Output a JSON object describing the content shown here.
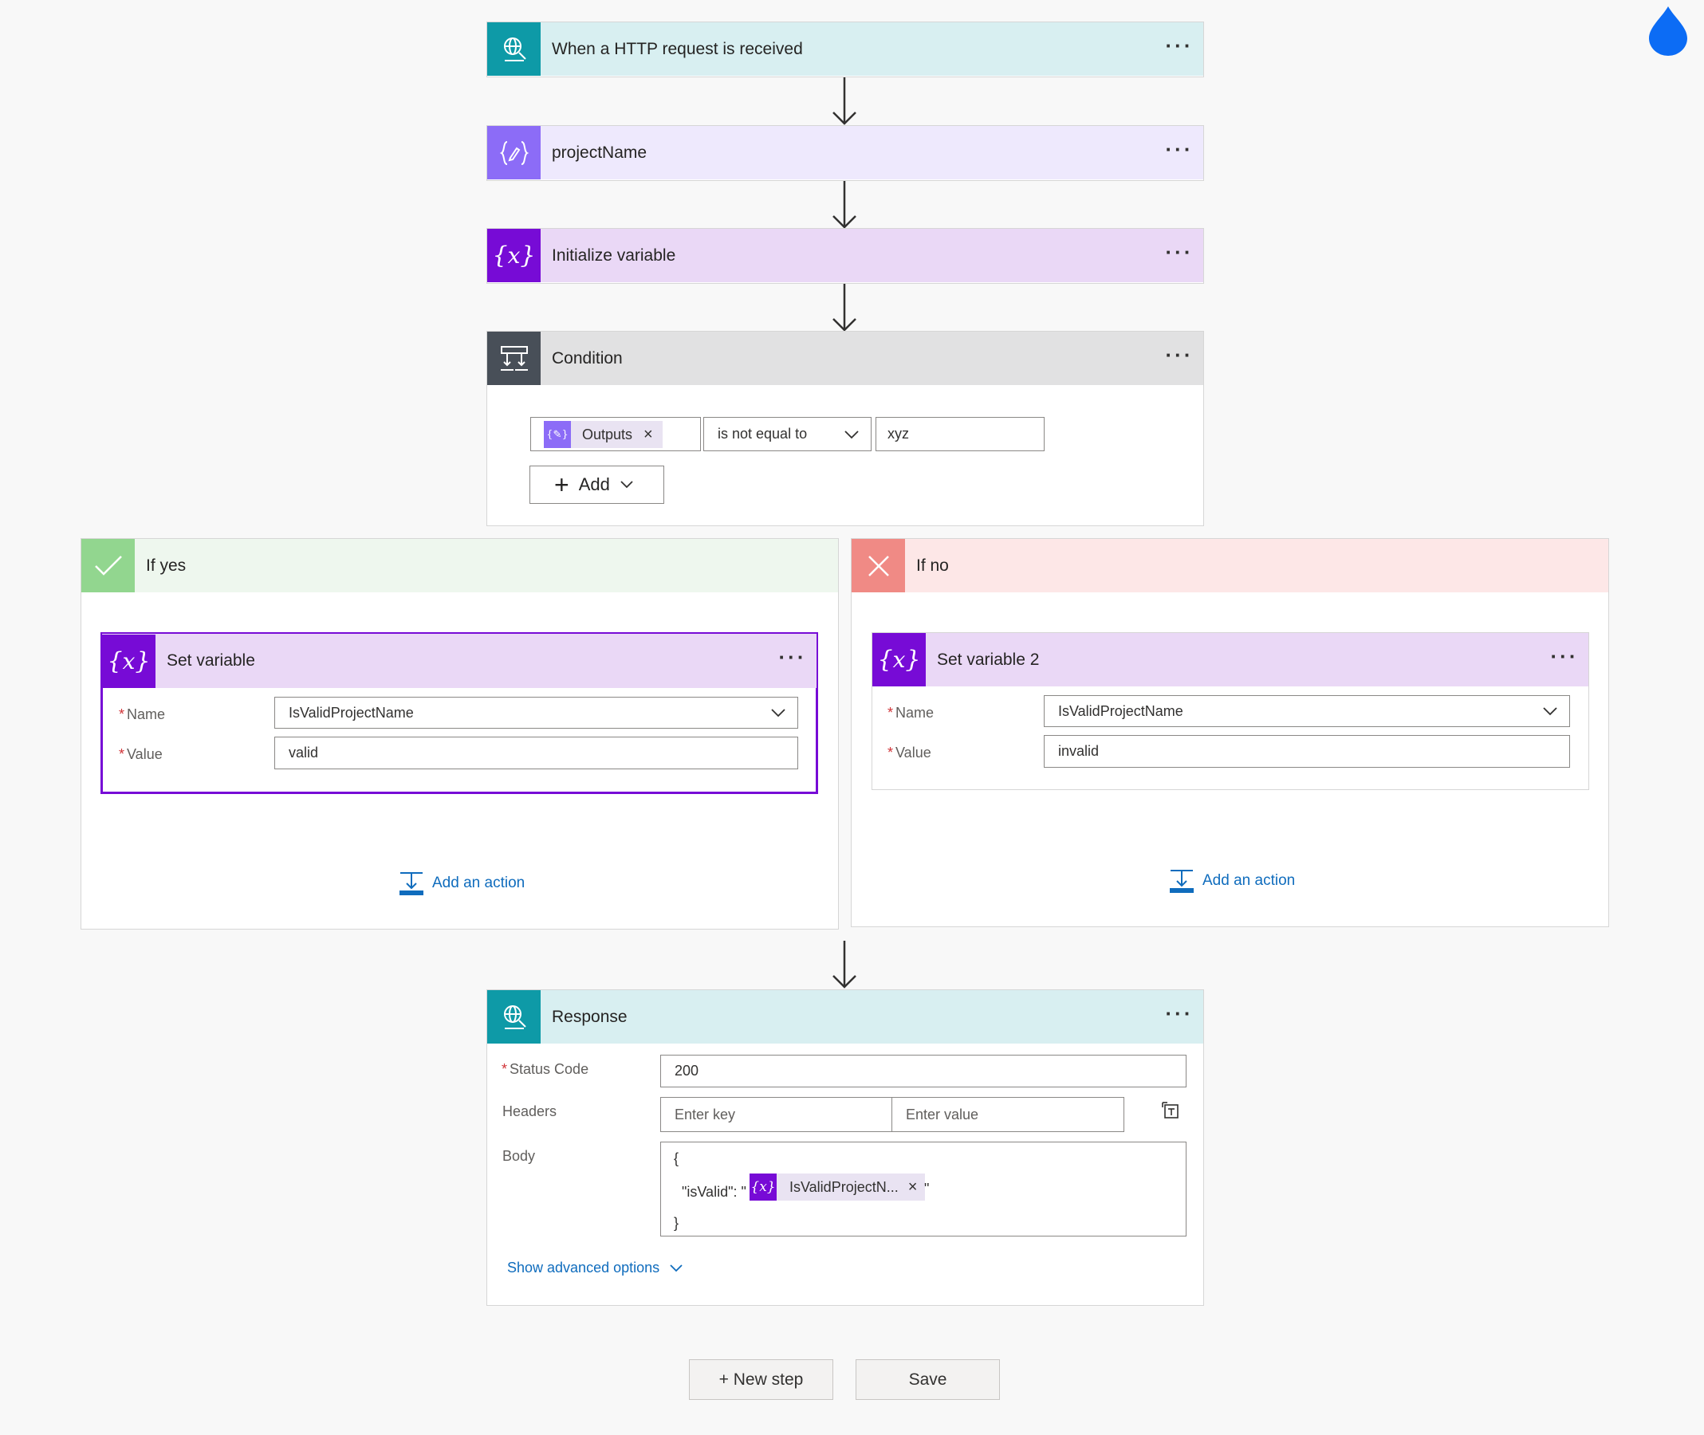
{
  "steps": {
    "trigger": {
      "title": "When a HTTP request is received",
      "icon": "globe-request-icon",
      "color": "#0e9aa7",
      "head_bg": "#d8eff1"
    },
    "compose": {
      "title": "projectName",
      "icon": "compose-icon",
      "color": "#8c6cf7",
      "head_bg": "#eee9fd"
    },
    "init": {
      "title": "Initialize variable",
      "icon": "variable-icon",
      "color": "#770bd6",
      "head_bg": "#ead8f6"
    },
    "condition": {
      "title": "Condition",
      "icon": "condition-icon",
      "color": "#484f58",
      "head_bg": "#e1e1e2",
      "left_token": "Outputs",
      "operator": "is not equal to",
      "right_value": "xyz",
      "add_label": "Add"
    },
    "response": {
      "title": "Response",
      "icon": "globe-response-icon",
      "color": "#0e9aa7",
      "head_bg": "#d8eff1",
      "status_label": "Status Code",
      "status_value": "200",
      "headers_label": "Headers",
      "key_placeholder": "Enter key",
      "value_placeholder": "Enter value",
      "body_label": "Body",
      "body_open": "{",
      "body_key": "\"isValid\": \"",
      "body_token": "IsValidProjectN...",
      "body_quote": "\"",
      "body_close": "}",
      "advanced": "Show advanced options"
    }
  },
  "branches": {
    "yes": {
      "title": "If yes",
      "color": "#92d68f",
      "head_bg": "#eef7ee",
      "action_title": "Set variable",
      "name_label": "Name",
      "name_value": "IsValidProjectName",
      "value_label": "Value",
      "value_value": "valid",
      "add_action": "Add an action"
    },
    "no": {
      "title": "If no",
      "color": "#f08a85",
      "head_bg": "#fde7e7",
      "action_title": "Set variable 2",
      "name_label": "Name",
      "name_value": "IsValidProjectName",
      "value_label": "Value",
      "value_value": "invalid",
      "add_action": "Add an action"
    }
  },
  "footer": {
    "new_step": "+ New step",
    "save": "Save"
  },
  "dots": "···"
}
